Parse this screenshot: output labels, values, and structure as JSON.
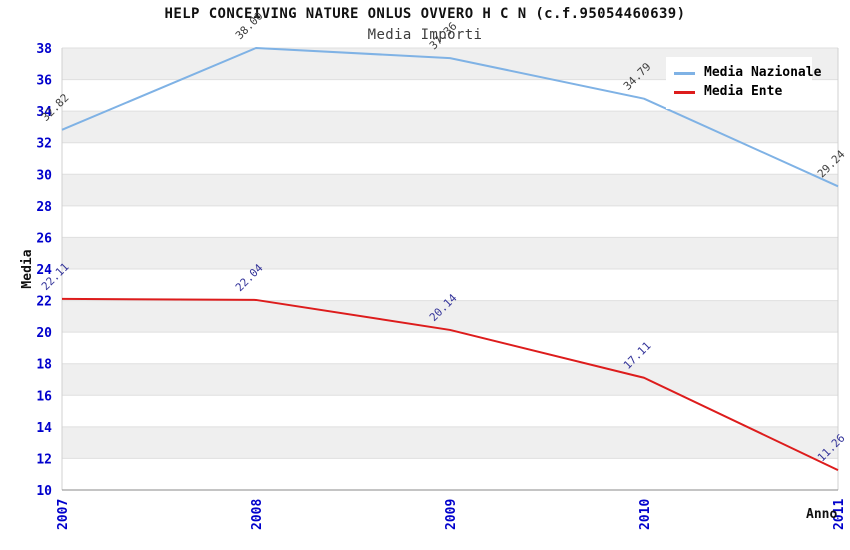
{
  "header": {
    "title": "HELP CONCEIVING NATURE ONLUS OVVERO H C N (c.f.95054460639)",
    "subtitle": "Media Importi"
  },
  "legend": {
    "position": "top-right",
    "items": [
      {
        "label": "Media Nazionale",
        "color": "#7fb2e5"
      },
      {
        "label": "Media Ente",
        "color": "#dd1c1c"
      }
    ]
  },
  "chart_data": {
    "type": "line",
    "title": "HELP CONCEIVING NATURE ONLUS OVVERO H C N (c.f.95054460639)",
    "subtitle": "Media Importi",
    "xlabel": "Anno",
    "ylabel": "Media",
    "categories": [
      "2007",
      "2008",
      "2009",
      "2010",
      "2011"
    ],
    "series": [
      {
        "name": "Media Nazionale",
        "color": "#7fb2e5",
        "label_color": "#3f3f3f",
        "values": [
          32.82,
          38.0,
          37.36,
          34.79,
          29.24
        ]
      },
      {
        "name": "Media Ente",
        "color": "#dd1c1c",
        "label_color": "#333399",
        "values": [
          22.11,
          22.04,
          20.14,
          17.11,
          11.26
        ]
      }
    ],
    "ylim": [
      10,
      38
    ],
    "ytick_step": 2,
    "grid": "horizontal-bands",
    "band_color": "#efefef",
    "gridline_color": "#dfdfdf",
    "axis_line_color": "#8a8a8a",
    "plot_border_color": "#d0d0d0",
    "tick_label_color": "#0000cc",
    "value_label_decimals": 2,
    "legend_position": "top-right"
  }
}
